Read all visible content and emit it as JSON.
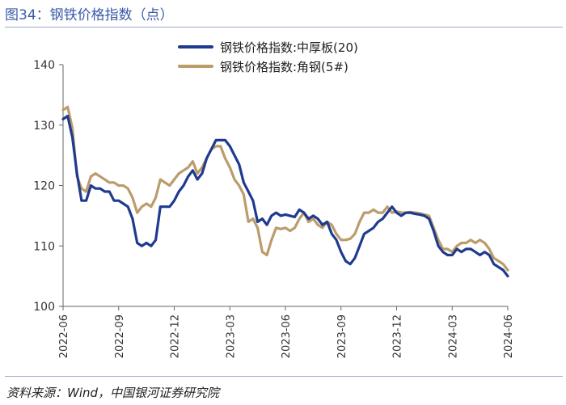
{
  "header": {
    "title": "图34：钢铁价格指数（点）"
  },
  "footer": {
    "source": "资料来源：Wind，中国银河证券研究院"
  },
  "chart_data": {
    "type": "line",
    "title": "",
    "xlabel": "",
    "ylabel": "",
    "ylim": [
      100,
      140
    ],
    "yticks": [
      100,
      110,
      120,
      130,
      140
    ],
    "xticks": [
      "2022-06",
      "2022-09",
      "2022-12",
      "2023-03",
      "2023-06",
      "2023-09",
      "2023-12",
      "2024-03",
      "2024-06"
    ],
    "grid": false,
    "legend_position": "top-center",
    "x": [
      "2022-06",
      "2022-06",
      "2022-07",
      "2022-07",
      "2022-07",
      "2022-07",
      "2022-07",
      "2022-08",
      "2022-08",
      "2022-08",
      "2022-08",
      "2022-09",
      "2022-09",
      "2022-09",
      "2022-09",
      "2022-10",
      "2022-10",
      "2022-10",
      "2022-10",
      "2022-11",
      "2022-11",
      "2022-11",
      "2022-11",
      "2022-12",
      "2022-12",
      "2022-12",
      "2022-12",
      "2023-01",
      "2023-01",
      "2023-01",
      "2023-01",
      "2023-02",
      "2023-02",
      "2023-02",
      "2023-02",
      "2023-03",
      "2023-03",
      "2023-03",
      "2023-03",
      "2023-04",
      "2023-04",
      "2023-04",
      "2023-04",
      "2023-05",
      "2023-05",
      "2023-05",
      "2023-05",
      "2023-06",
      "2023-06",
      "2023-06",
      "2023-06",
      "2023-07",
      "2023-07",
      "2023-07",
      "2023-07",
      "2023-08",
      "2023-08",
      "2023-08",
      "2023-08",
      "2023-09",
      "2023-09",
      "2023-09",
      "2023-09",
      "2023-10",
      "2023-10",
      "2023-10",
      "2023-10",
      "2023-11",
      "2023-11",
      "2023-11",
      "2023-11",
      "2023-12",
      "2023-12",
      "2023-12",
      "2023-12",
      "2024-01",
      "2024-01",
      "2024-01",
      "2024-01",
      "2024-02",
      "2024-02",
      "2024-02",
      "2024-02",
      "2024-03",
      "2024-03",
      "2024-03",
      "2024-03",
      "2024-04",
      "2024-04",
      "2024-04",
      "2024-04",
      "2024-05",
      "2024-05",
      "2024-05",
      "2024-05",
      "2024-06",
      "2024-06"
    ],
    "series": [
      {
        "name": "钢铁价格指数:中厚板(20)",
        "color": "#1f3b8f",
        "values": [
          131.0,
          131.5,
          128.0,
          122.0,
          117.5,
          117.5,
          120.0,
          119.5,
          119.5,
          119.0,
          119.0,
          117.5,
          117.5,
          117.0,
          116.5,
          114.5,
          110.5,
          110.0,
          110.5,
          110.0,
          111.0,
          116.5,
          116.5,
          116.5,
          117.5,
          119.0,
          120.0,
          121.5,
          122.5,
          121.0,
          122.0,
          124.5,
          126.0,
          127.5,
          127.5,
          127.5,
          126.5,
          125.0,
          123.5,
          120.5,
          119.0,
          117.5,
          114.0,
          114.5,
          113.5,
          115.0,
          115.5,
          115.0,
          115.2,
          115.0,
          114.8,
          116.0,
          115.5,
          114.5,
          115.0,
          114.5,
          113.5,
          114.0,
          112.0,
          111.0,
          109.0,
          107.5,
          107.0,
          108.0,
          110.0,
          112.0,
          112.5,
          113.0,
          114.0,
          114.5,
          115.5,
          116.5,
          115.5,
          115.0,
          115.5,
          115.5,
          115.3,
          115.2,
          115.0,
          114.5,
          112.5,
          110.0,
          109.0,
          108.5,
          108.5,
          109.5,
          109.0,
          109.5,
          109.5,
          109.0,
          108.5,
          109.0,
          108.5,
          107.0,
          106.5,
          106.0,
          105.0
        ]
      },
      {
        "name": "钢铁价格指数:角钢(5#)",
        "color": "#bb9c6b",
        "values": [
          132.5,
          133.0,
          129.5,
          121.5,
          119.5,
          119.0,
          121.5,
          122.0,
          121.5,
          121.0,
          120.5,
          120.5,
          120.0,
          120.0,
          119.5,
          118.0,
          115.5,
          116.5,
          117.0,
          116.5,
          118.0,
          121.0,
          120.5,
          120.0,
          121.0,
          122.0,
          122.5,
          123.0,
          124.0,
          122.0,
          123.0,
          124.5,
          126.0,
          126.5,
          126.5,
          124.5,
          123.0,
          121.0,
          120.0,
          118.5,
          114.0,
          114.5,
          113.0,
          109.0,
          108.5,
          111.0,
          113.0,
          112.8,
          113.0,
          112.5,
          113.0,
          114.5,
          115.5,
          114.0,
          114.5,
          113.5,
          113.0,
          114.0,
          113.5,
          112.0,
          111.0,
          111.0,
          111.2,
          112.0,
          114.0,
          115.5,
          115.5,
          116.0,
          115.5,
          115.5,
          116.5,
          115.5,
          115.7,
          115.5,
          115.5,
          115.6,
          115.5,
          115.4,
          115.2,
          115.0,
          113.0,
          111.0,
          109.5,
          109.5,
          109.0,
          110.0,
          110.5,
          110.5,
          111.0,
          110.5,
          111.0,
          110.5,
          109.5,
          108.0,
          107.5,
          107.0,
          106.0
        ]
      }
    ]
  }
}
